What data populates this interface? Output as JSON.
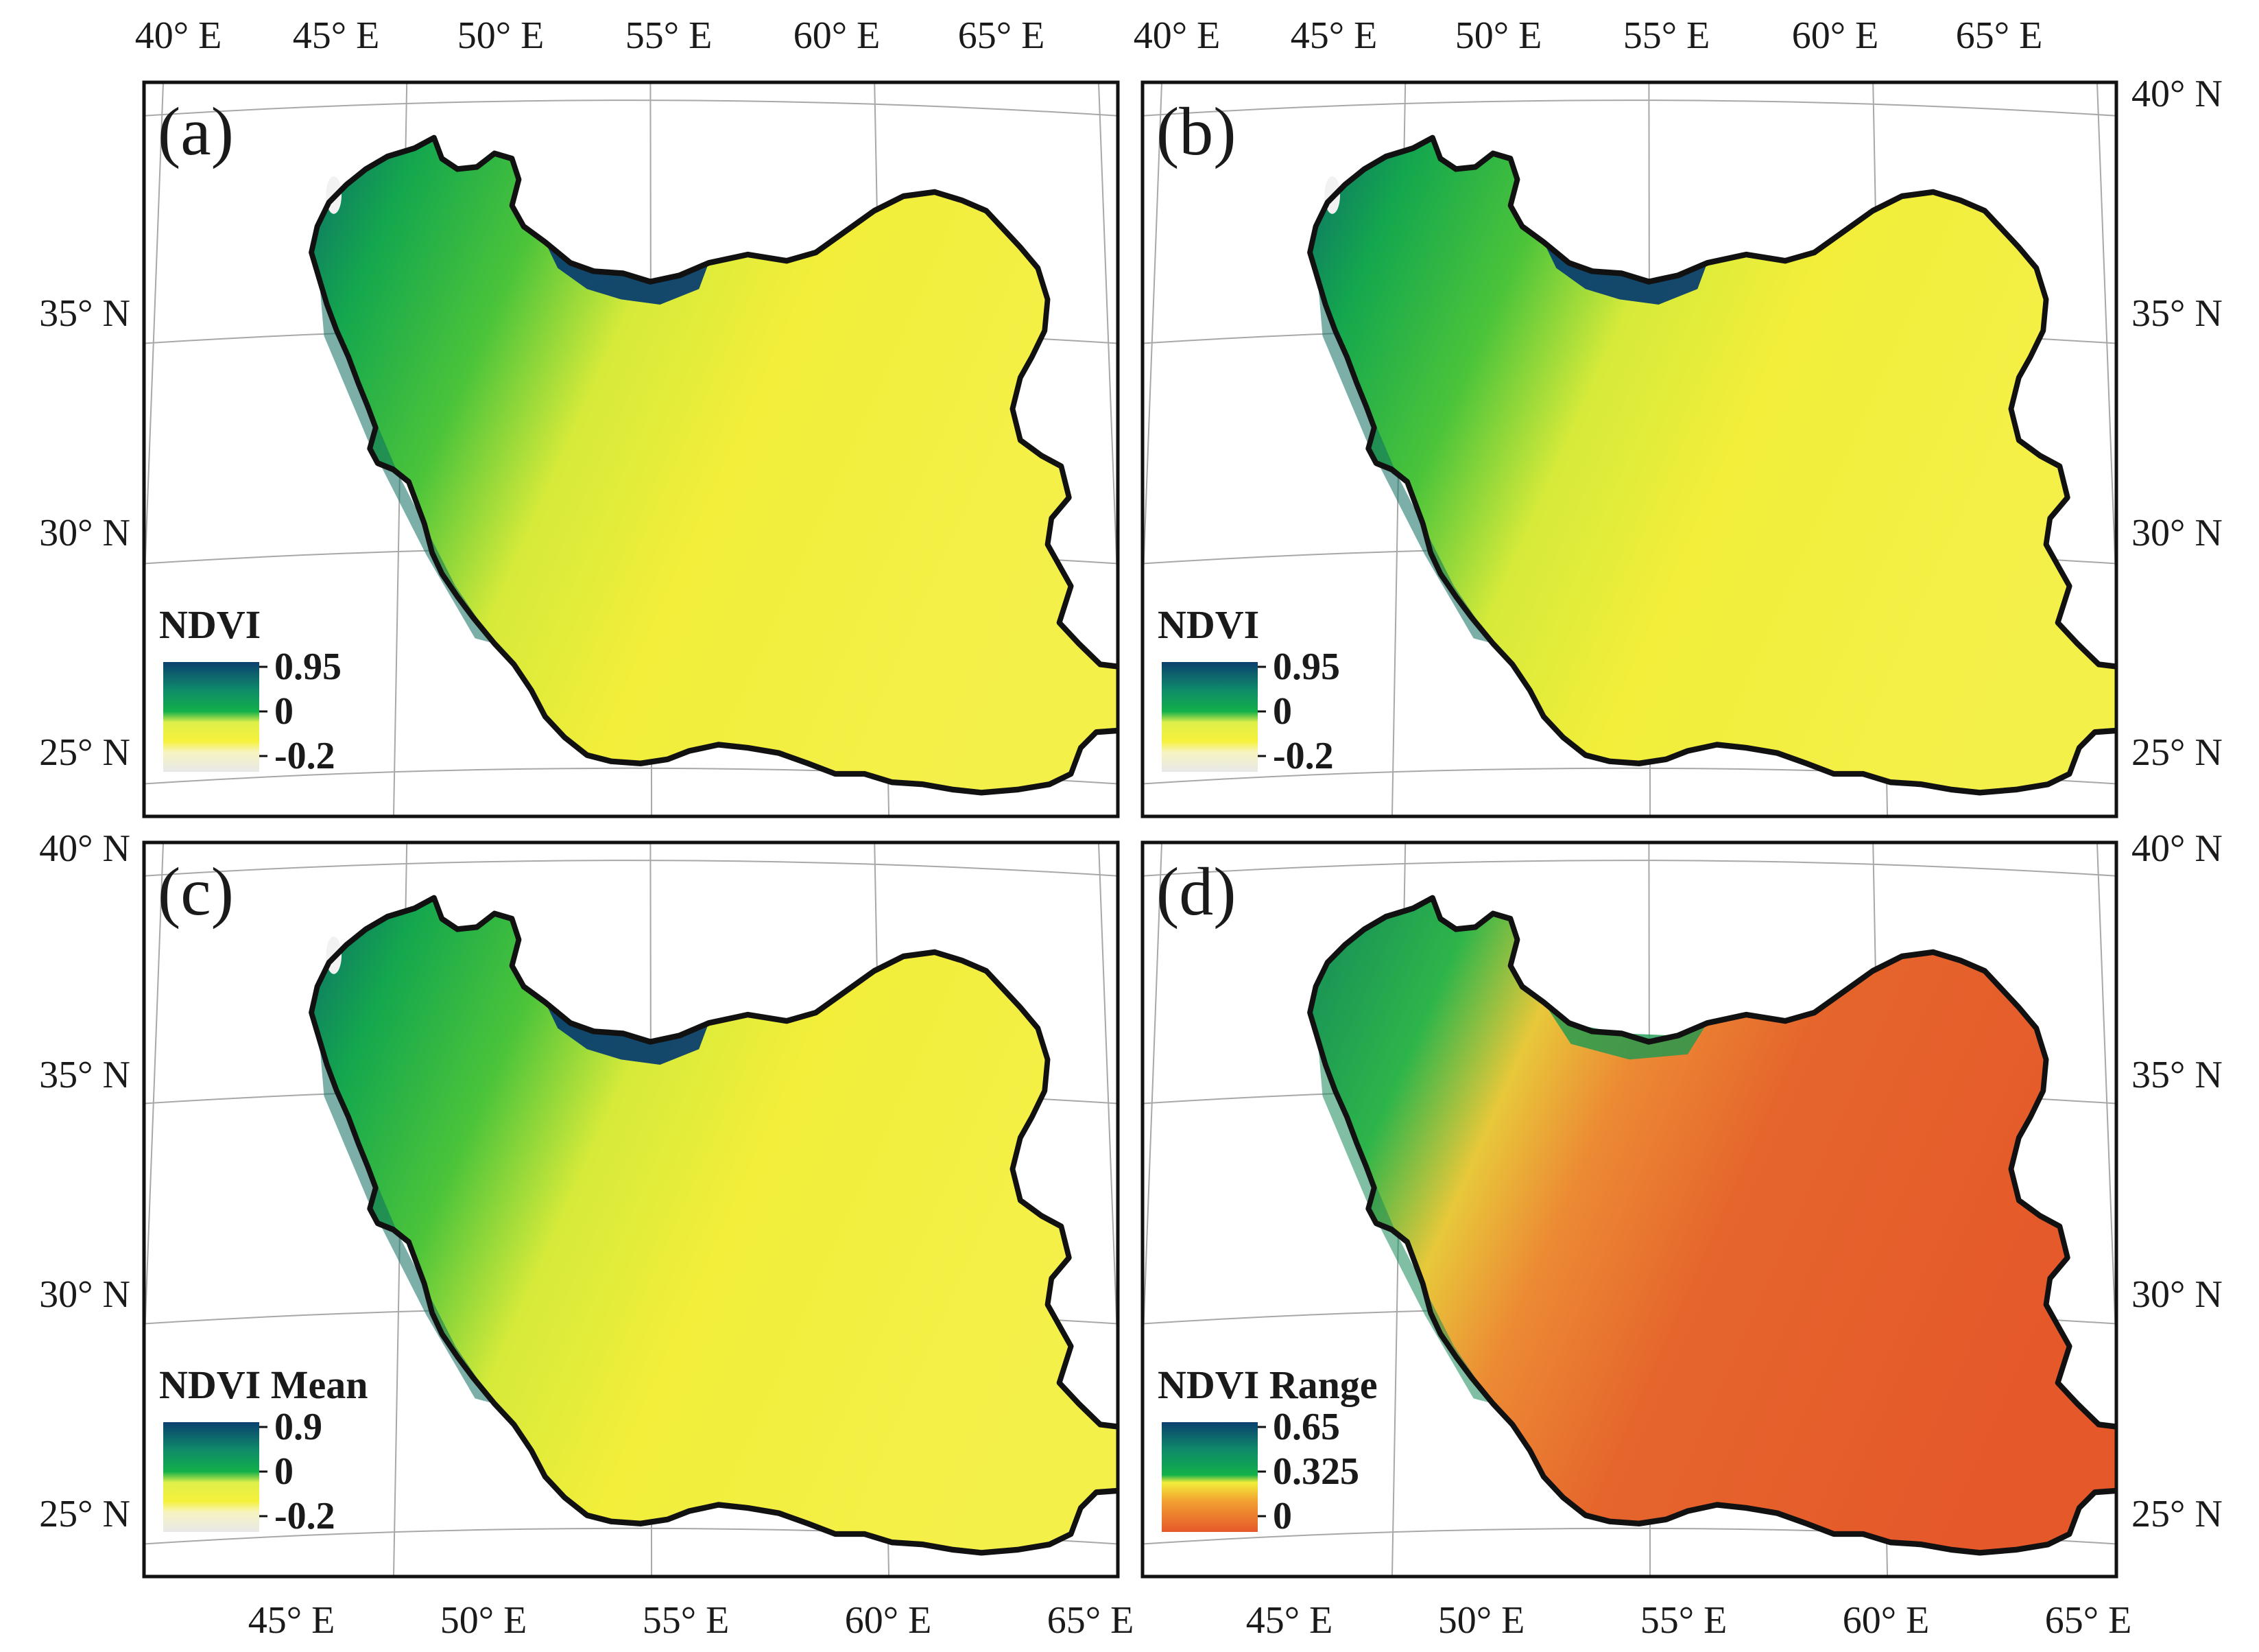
{
  "top_axis_labels": {
    "left": [
      "40° E",
      "45° E",
      "50° E",
      "55° E",
      "60° E",
      "65° E"
    ],
    "right": [
      "40° E",
      "45° E",
      "50° E",
      "55° E",
      "60° E",
      "65° E"
    ]
  },
  "bottom_axis_labels": {
    "left": [
      "45° E",
      "50° E",
      "55° E",
      "60° E",
      "65° E"
    ],
    "right": [
      "45° E",
      "50° E",
      "55° E",
      "60° E",
      "65° E"
    ]
  },
  "left_axis_labels": {
    "top": [
      "35° N",
      "30° N",
      "25° N"
    ],
    "bottom": [
      "40° N",
      "35° N",
      "30° N",
      "25° N"
    ]
  },
  "right_axis_labels": {
    "top": [
      "40° N",
      "35° N",
      "30° N",
      "25° N"
    ],
    "bottom": [
      "40° N",
      "35° N",
      "30° N",
      "25° N"
    ]
  },
  "panels": [
    {
      "letter": "(a)",
      "legend_title": "NDVI",
      "legend_values": [
        "0.95",
        "0",
        "-0.2"
      ],
      "scheme": "ndvi"
    },
    {
      "letter": "(b)",
      "legend_title": "NDVI",
      "legend_values": [
        "0.95",
        "0",
        "-0.2"
      ],
      "scheme": "ndvi"
    },
    {
      "letter": "(c)",
      "legend_title": "NDVI Mean",
      "legend_values": [
        "0.9",
        "0",
        "-0.2"
      ],
      "scheme": "ndvi"
    },
    {
      "letter": "(d)",
      "legend_title": "NDVI Range",
      "legend_values": [
        "0.65",
        "0.325",
        "0"
      ],
      "scheme": "range"
    }
  ],
  "colors": {
    "ndvi_high": "#0b4a7a",
    "ndvi_mid_green": "#12b04a",
    "ndvi_yellow": "#f2ee3a",
    "ndvi_low": "#eeeeee",
    "range_high": "#0b4a7a",
    "range_mid": "#12b04a",
    "range_yellow": "#f2ee3a",
    "range_low": "#e5582a",
    "grid": "#a8a8a8",
    "border": "#111111"
  }
}
